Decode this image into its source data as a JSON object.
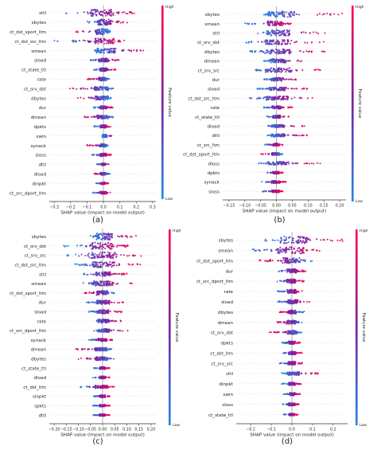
{
  "colors": {
    "low": "#1e88e5",
    "mid": "#7b1fa2",
    "high": "#ff0052",
    "zero_line": "#999999"
  },
  "colorbar": {
    "high_label": "High",
    "low_label": "Low",
    "title": "Feature value"
  },
  "chart_data": [
    {
      "type": "scatter",
      "id": "a",
      "caption": "(a)",
      "xlabel": "SHAP value (impact on model output)",
      "xticks": [
        -0.3,
        -0.2,
        -0.1,
        0.0,
        0.1,
        0.2,
        0.3
      ],
      "xtick_labels": [
        "−0.3",
        "−0.2",
        "−0.1",
        "0.0",
        "0.1",
        "0.2",
        "0.3"
      ],
      "xlim": [
        -0.33,
        0.32
      ],
      "features": [
        {
          "name": "sttl",
          "min": -0.23,
          "max": 0.2,
          "spread": 0.7,
          "skew": 0.8
        },
        {
          "name": "sbytes",
          "min": -0.1,
          "max": 0.16,
          "spread": 0.6,
          "skew": 0.5
        },
        {
          "name": "ct_dst_sport_ltm",
          "min": -0.2,
          "max": 0.04,
          "spread": 0.6,
          "skew": -0.6
        },
        {
          "name": "ct_dst_src_ltm",
          "min": -0.3,
          "max": 0.14,
          "spread": 0.55,
          "skew": 0.6
        },
        {
          "name": "smean",
          "min": -0.06,
          "max": 0.28,
          "spread": 0.5,
          "skew": 0.5
        },
        {
          "name": "sload",
          "min": -0.08,
          "max": 0.1,
          "spread": 0.4,
          "skew": 0.4
        },
        {
          "name": "ct_state_ttl",
          "min": -0.06,
          "max": 0.08,
          "spread": 0.35,
          "skew": 0.5
        },
        {
          "name": "rate",
          "min": -0.1,
          "max": 0.04,
          "spread": 0.35,
          "skew": -0.4
        },
        {
          "name": "ct_srv_dst",
          "min": -0.22,
          "max": 0.06,
          "spread": 0.4,
          "skew": -0.5
        },
        {
          "name": "dbytes",
          "min": -0.17,
          "max": 0.05,
          "spread": 0.4,
          "skew": -0.4
        },
        {
          "name": "dur",
          "min": -0.06,
          "max": 0.06,
          "spread": 0.3,
          "skew": 0.3
        },
        {
          "name": "dmean",
          "min": -0.13,
          "max": 0.06,
          "spread": 0.35,
          "skew": -0.4
        },
        {
          "name": "dpkts",
          "min": -0.06,
          "max": 0.05,
          "spread": 0.3,
          "skew": 0.3
        },
        {
          "name": "swin",
          "min": 0.0,
          "max": 0.08,
          "spread": 0.3,
          "skew": 0.8
        },
        {
          "name": "synack",
          "min": -0.1,
          "max": 0.03,
          "spread": 0.3,
          "skew": -0.4
        },
        {
          "name": "sloss",
          "min": -0.07,
          "max": 0.05,
          "spread": 0.3,
          "skew": 0.3
        },
        {
          "name": "dttl",
          "min": -0.04,
          "max": 0.04,
          "spread": 0.2,
          "skew": 0.3
        },
        {
          "name": "dload",
          "min": -0.06,
          "max": 0.04,
          "spread": 0.25,
          "skew": -0.3
        },
        {
          "name": "dinpkt",
          "min": -0.05,
          "max": 0.03,
          "spread": 0.2,
          "skew": 0.3
        },
        {
          "name": "ct_src_dport_ltm",
          "min": -0.07,
          "max": 0.05,
          "spread": 0.25,
          "skew": 0.3
        }
      ]
    },
    {
      "type": "scatter",
      "id": "b",
      "caption": "(b)",
      "xlabel": "SHAP value (impact on model output)",
      "xticks": [
        -0.15,
        -0.1,
        -0.05,
        0.0,
        0.05,
        0.1,
        0.15,
        0.2
      ],
      "xtick_labels": [
        "−0.15",
        "−0.10",
        "−0.05",
        "0.00",
        "0.05",
        "0.10",
        "0.15",
        "0.20"
      ],
      "xlim": [
        -0.17,
        0.22
      ],
      "features": [
        {
          "name": "sbytes",
          "min": -0.04,
          "max": 0.21,
          "spread": 0.6,
          "skew": 0.6
        },
        {
          "name": "smean",
          "min": -0.1,
          "max": 0.05,
          "spread": 0.5,
          "skew": 0.5
        },
        {
          "name": "sttl",
          "min": -0.06,
          "max": 0.16,
          "spread": 0.6,
          "skew": 0.7
        },
        {
          "name": "ct_srv_dst",
          "min": -0.1,
          "max": 0.15,
          "spread": 0.5,
          "skew": 0.5
        },
        {
          "name": "dbytes",
          "min": -0.09,
          "max": 0.16,
          "spread": 0.5,
          "skew": 0.6
        },
        {
          "name": "dmean",
          "min": -0.04,
          "max": 0.11,
          "spread": 0.4,
          "skew": 0.5
        },
        {
          "name": "ct_srv_src",
          "min": -0.08,
          "max": 0.15,
          "spread": 0.45,
          "skew": 0.5
        },
        {
          "name": "dur",
          "min": -0.04,
          "max": 0.07,
          "spread": 0.35,
          "skew": 0.4
        },
        {
          "name": "sload",
          "min": -0.06,
          "max": 0.1,
          "spread": 0.35,
          "skew": 0.4
        },
        {
          "name": "ct_dst_src_ltm",
          "min": -0.1,
          "max": 0.12,
          "spread": 0.4,
          "skew": 0.5
        },
        {
          "name": "rate",
          "min": -0.04,
          "max": 0.05,
          "spread": 0.3,
          "skew": 0.3
        },
        {
          "name": "ct_state_ttl",
          "min": -0.03,
          "max": 0.04,
          "spread": 0.3,
          "skew": 0.3
        },
        {
          "name": "dload",
          "min": -0.03,
          "max": 0.09,
          "spread": 0.3,
          "skew": 0.6
        },
        {
          "name": "dttl",
          "min": -0.03,
          "max": 0.1,
          "spread": 0.3,
          "skew": 0.6
        },
        {
          "name": "ct_src_ltm",
          "min": -0.04,
          "max": 0.02,
          "spread": 0.25,
          "skew": 0.3
        },
        {
          "name": "ct_dst_sport_ltm",
          "min": -0.05,
          "max": 0.02,
          "spread": 0.25,
          "skew": -0.3
        },
        {
          "name": "dloss",
          "min": -0.06,
          "max": 0.14,
          "spread": 0.35,
          "skew": 0.6
        },
        {
          "name": "dpkts",
          "min": -0.04,
          "max": 0.02,
          "spread": 0.25,
          "skew": 0.3
        },
        {
          "name": "synack",
          "min": -0.05,
          "max": 0.03,
          "spread": 0.25,
          "skew": 0.3
        },
        {
          "name": "sloss",
          "min": -0.05,
          "max": 0.02,
          "spread": 0.25,
          "skew": 0.3
        }
      ]
    },
    {
      "type": "scatter",
      "id": "c",
      "caption": "(c)",
      "xlabel": "SHAP value (impact on model output)",
      "xticks": [
        -0.2,
        -0.15,
        -0.1,
        -0.05,
        0.0,
        0.05,
        0.1,
        0.15,
        0.2
      ],
      "xtick_labels": [
        "−0.20",
        "−0.15",
        "−0.10",
        "−0.05",
        "0.00",
        "0.05",
        "0.10",
        "0.15",
        "0.20"
      ],
      "xlim": [
        -0.22,
        0.22
      ],
      "features": [
        {
          "name": "sbytes",
          "min": -0.05,
          "max": 0.14,
          "spread": 0.7,
          "skew": 0.6
        },
        {
          "name": "ct_srv_dst",
          "min": -0.16,
          "max": 0.11,
          "spread": 0.7,
          "skew": 0.6
        },
        {
          "name": "ct_srv_src",
          "min": -0.16,
          "max": 0.17,
          "spread": 0.65,
          "skew": 0.6
        },
        {
          "name": "ct_dst_src_ltm",
          "min": -0.12,
          "max": 0.16,
          "spread": 0.6,
          "skew": 0.6
        },
        {
          "name": "sttl",
          "min": -0.08,
          "max": 0.1,
          "spread": 0.45,
          "skew": 0.5
        },
        {
          "name": "smean",
          "min": -0.1,
          "max": 0.14,
          "spread": 0.5,
          "skew": 0.6
        },
        {
          "name": "ct_dst_sport_ltm",
          "min": -0.08,
          "max": 0.05,
          "spread": 0.45,
          "skew": -0.5
        },
        {
          "name": "dur",
          "min": -0.07,
          "max": 0.09,
          "spread": 0.4,
          "skew": 0.4
        },
        {
          "name": "sload",
          "min": -0.06,
          "max": 0.08,
          "spread": 0.4,
          "skew": 0.4
        },
        {
          "name": "rate",
          "min": -0.04,
          "max": 0.09,
          "spread": 0.35,
          "skew": 0.4
        },
        {
          "name": "ct_src_dport_ltm",
          "min": -0.04,
          "max": 0.11,
          "spread": 0.35,
          "skew": 0.5
        },
        {
          "name": "synack",
          "min": -0.06,
          "max": 0.04,
          "spread": 0.3,
          "skew": 0.3
        },
        {
          "name": "dmean",
          "min": -0.11,
          "max": 0.04,
          "spread": 0.35,
          "skew": -0.4
        },
        {
          "name": "dbytes",
          "min": -0.1,
          "max": 0.05,
          "spread": 0.35,
          "skew": -0.3
        },
        {
          "name": "ct_state_ttl",
          "min": -0.04,
          "max": 0.03,
          "spread": 0.25,
          "skew": 0.3
        },
        {
          "name": "dload",
          "min": -0.04,
          "max": 0.03,
          "spread": 0.25,
          "skew": 0.3
        },
        {
          "name": "ct_dst_ltm",
          "min": -0.1,
          "max": 0.05,
          "spread": 0.3,
          "skew": 0.4
        },
        {
          "name": "sinpkt",
          "min": -0.04,
          "max": 0.03,
          "spread": 0.25,
          "skew": 0.3
        },
        {
          "name": "spkts",
          "min": -0.04,
          "max": 0.03,
          "spread": 0.2,
          "skew": 0.3
        },
        {
          "name": "dttl",
          "min": -0.04,
          "max": 0.03,
          "spread": 0.2,
          "skew": 0.3
        }
      ]
    },
    {
      "type": "scatter",
      "id": "d",
      "caption": "(d)",
      "xlabel": "SHAP value (impact on model output)",
      "xticks": [
        -0.2,
        -0.1,
        0.0,
        0.1,
        0.2
      ],
      "xtick_labels": [
        "−0.2",
        "−0.1",
        "0.0",
        "0.1",
        "0.2"
      ],
      "xlim": [
        -0.27,
        0.27
      ],
      "features": [
        {
          "name": "sbytes",
          "min": -0.13,
          "max": 0.25,
          "spread": 0.7,
          "skew": 0.7
        },
        {
          "name": "smean",
          "min": -0.22,
          "max": 0.15,
          "spread": 0.65,
          "skew": 0.6
        },
        {
          "name": "ct_dst_sport_ltm",
          "min": -0.16,
          "max": 0.1,
          "spread": 0.55,
          "skew": -0.6
        },
        {
          "name": "dur",
          "min": -0.07,
          "max": 0.07,
          "spread": 0.4,
          "skew": 0.4
        },
        {
          "name": "ct_src_dport_ltm",
          "min": -0.08,
          "max": 0.06,
          "spread": 0.4,
          "skew": 0.4
        },
        {
          "name": "rate",
          "min": -0.07,
          "max": 0.06,
          "spread": 0.35,
          "skew": 0.4
        },
        {
          "name": "sload",
          "min": -0.07,
          "max": 0.09,
          "spread": 0.4,
          "skew": 0.4
        },
        {
          "name": "dbytes",
          "min": -0.06,
          "max": 0.06,
          "spread": 0.35,
          "skew": -0.3
        },
        {
          "name": "dmean",
          "min": -0.08,
          "max": 0.06,
          "spread": 0.35,
          "skew": -0.3
        },
        {
          "name": "ct_srv_dst",
          "min": -0.11,
          "max": 0.05,
          "spread": 0.35,
          "skew": -0.4
        },
        {
          "name": "dpkts",
          "min": -0.05,
          "max": 0.04,
          "spread": 0.3,
          "skew": 0.3
        },
        {
          "name": "ct_dst_ltm",
          "min": -0.05,
          "max": 0.05,
          "spread": 0.3,
          "skew": 0.3
        },
        {
          "name": "ct_srv_src",
          "min": -0.06,
          "max": 0.05,
          "spread": 0.3,
          "skew": 0.3
        },
        {
          "name": "sttl",
          "min": -0.05,
          "max": 0.13,
          "spread": 0.3,
          "skew": 0.6
        },
        {
          "name": "dinpkt",
          "min": -0.05,
          "max": 0.05,
          "spread": 0.3,
          "skew": 0.3
        },
        {
          "name": "swin",
          "min": -0.04,
          "max": 0.04,
          "spread": 0.25,
          "skew": 0.3
        },
        {
          "name": "sloss",
          "min": -0.05,
          "max": 0.04,
          "spread": 0.25,
          "skew": 0.3
        },
        {
          "name": "ct_state_ttl",
          "min": -0.04,
          "max": 0.03,
          "spread": 0.2,
          "skew": 0.3
        }
      ]
    }
  ]
}
